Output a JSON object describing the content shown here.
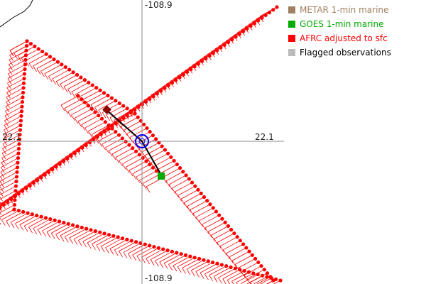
{
  "map": {
    "axis_labels": {
      "top": "-108.9",
      "bottom": "-108.9",
      "right": "22.1",
      "left": "22.1"
    },
    "colors": {
      "afrc": "#ff0000",
      "goes": "#00aa00",
      "metar": "#a08060",
      "flagged": "#bbbbbb",
      "crosshair": "#888888",
      "center_marker": "#0000ff",
      "vector": "#000000"
    }
  },
  "legend": {
    "items": [
      {
        "label": "METAR 1-min marine",
        "color": "#a08060"
      },
      {
        "label": "GOES 1-min marine",
        "color": "#00aa00"
      },
      {
        "label": "AFRC adjusted to sfc",
        "color": "#ff0000"
      },
      {
        "label": "Flagged observations",
        "color": "#bbbbbb"
      }
    ]
  }
}
